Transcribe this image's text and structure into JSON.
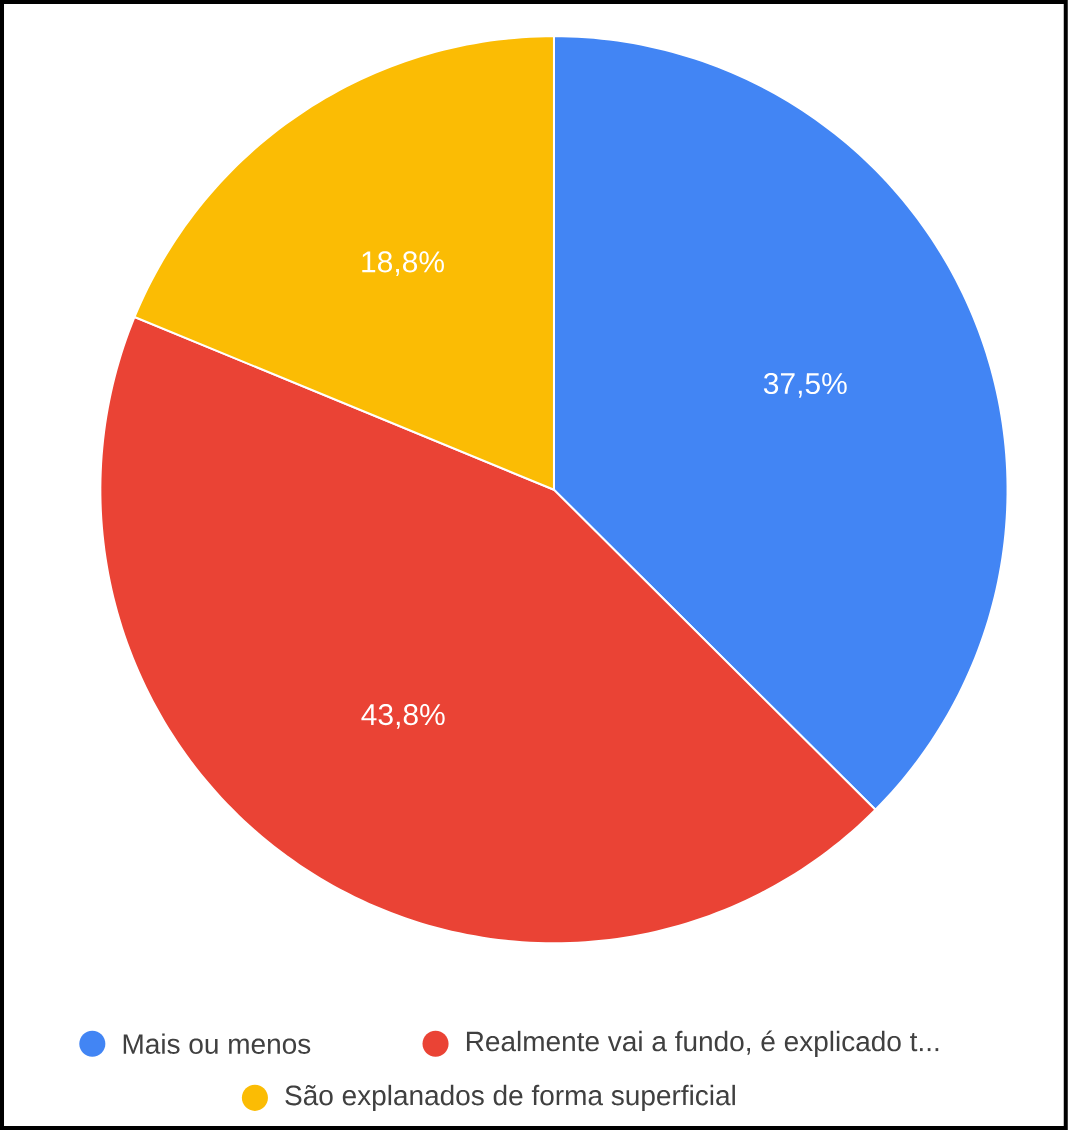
{
  "chart_data": {
    "type": "pie",
    "categories": [
      "Mais ou menos",
      "Realmente vai a fundo, é explicado t...",
      "São explanados de forma superficial"
    ],
    "values": [
      37.5,
      43.8,
      18.8
    ],
    "value_labels": [
      "37,5%",
      "43,8%",
      "18,8%"
    ],
    "colors": [
      "#4285f4",
      "#ea4335",
      "#fbbc04"
    ],
    "legend": "bottom"
  }
}
